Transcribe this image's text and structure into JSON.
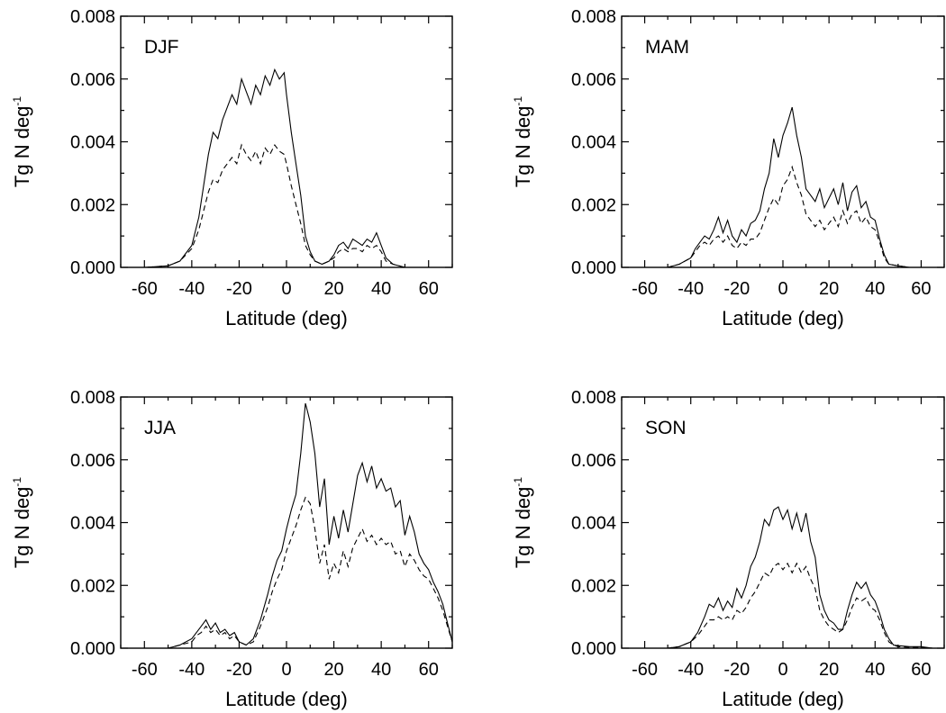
{
  "chart_data": [
    {
      "type": "line",
      "title": "DJF",
      "xlabel": "Latitude (deg)",
      "ylabel": "Tg N deg",
      "ylabel_sup": "-1",
      "xlim": [
        -70,
        70
      ],
      "ylim": [
        0.0,
        0.008
      ],
      "xticks": [
        -60,
        -40,
        -20,
        0,
        20,
        40,
        60
      ],
      "yticks": [
        "0.000",
        "0.002",
        "0.004",
        "0.006",
        "0.008"
      ],
      "series": [
        {
          "style": "solid",
          "x": [
            -70,
            -60,
            -50,
            -45,
            -40,
            -37,
            -35,
            -33,
            -31,
            -29,
            -27,
            -25,
            -23,
            -21,
            -19,
            -17,
            -15,
            -13,
            -11,
            -9,
            -7,
            -5,
            -3,
            -1,
            0,
            2,
            4,
            6,
            8,
            10,
            12,
            15,
            18,
            20,
            22,
            24,
            26,
            28,
            30,
            32,
            34,
            36,
            38,
            40,
            42,
            45,
            50
          ],
          "y": [
            0,
            0,
            5e-05,
            0.0002,
            0.0007,
            0.0016,
            0.0026,
            0.0036,
            0.0043,
            0.0041,
            0.0047,
            0.0051,
            0.0055,
            0.0052,
            0.006,
            0.0056,
            0.0052,
            0.0058,
            0.0055,
            0.0061,
            0.0058,
            0.0063,
            0.006,
            0.0062,
            0.0055,
            0.0043,
            0.0033,
            0.0023,
            0.001,
            0.0005,
            0.0002,
            0.0001,
            0.0002,
            0.0004,
            0.0007,
            0.0008,
            0.0006,
            0.0009,
            0.0008,
            0.0007,
            0.0009,
            0.0008,
            0.0011,
            0.0007,
            0.0003,
            0.0001,
            0
          ]
        },
        {
          "style": "dashed",
          "x": [
            -70,
            -60,
            -50,
            -45,
            -40,
            -37,
            -35,
            -33,
            -31,
            -29,
            -27,
            -25,
            -23,
            -21,
            -19,
            -17,
            -15,
            -13,
            -11,
            -9,
            -7,
            -5,
            -3,
            -1,
            0,
            2,
            4,
            6,
            8,
            10,
            12,
            15,
            18,
            20,
            22,
            24,
            26,
            28,
            30,
            32,
            34,
            36,
            38,
            40,
            42,
            45,
            50
          ],
          "y": [
            0,
            0,
            5e-05,
            0.0002,
            0.0006,
            0.0012,
            0.0018,
            0.0024,
            0.0028,
            0.0027,
            0.0031,
            0.0033,
            0.0035,
            0.0033,
            0.0039,
            0.0036,
            0.0034,
            0.0037,
            0.0033,
            0.0038,
            0.0036,
            0.0039,
            0.0037,
            0.0036,
            0.0033,
            0.0026,
            0.002,
            0.0014,
            0.0007,
            0.0004,
            0.0002,
            0.0001,
            0.0002,
            0.0003,
            0.0005,
            0.0006,
            0.0005,
            0.0006,
            0.0006,
            0.0005,
            0.0007,
            0.0006,
            0.0007,
            0.0005,
            0.0002,
            0.0001,
            0
          ]
        }
      ]
    },
    {
      "type": "line",
      "title": "MAM",
      "xlabel": "Latitude (deg)",
      "ylabel": "Tg N deg",
      "ylabel_sup": "-1",
      "xlim": [
        -70,
        70
      ],
      "ylim": [
        0.0,
        0.008
      ],
      "xticks": [
        -60,
        -40,
        -20,
        0,
        20,
        40,
        60
      ],
      "yticks": [
        "0.000",
        "0.002",
        "0.004",
        "0.006",
        "0.008"
      ],
      "series": [
        {
          "style": "solid",
          "x": [
            -70,
            -60,
            -50,
            -45,
            -40,
            -38,
            -36,
            -34,
            -32,
            -30,
            -28,
            -26,
            -24,
            -22,
            -20,
            -18,
            -16,
            -14,
            -12,
            -10,
            -8,
            -6,
            -4,
            -2,
            0,
            2,
            4,
            6,
            8,
            10,
            12,
            14,
            16,
            18,
            20,
            22,
            24,
            26,
            28,
            30,
            32,
            34,
            36,
            38,
            40,
            42,
            44,
            46,
            50,
            55,
            60,
            70
          ],
          "y": [
            0,
            0,
            0,
            0.0001,
            0.0003,
            0.0006,
            0.0008,
            0.001,
            0.0009,
            0.0012,
            0.0016,
            0.0011,
            0.0015,
            0.001,
            0.0008,
            0.0012,
            0.001,
            0.0014,
            0.0015,
            0.0018,
            0.0025,
            0.003,
            0.0041,
            0.0035,
            0.0042,
            0.0046,
            0.0051,
            0.0042,
            0.0035,
            0.0025,
            0.0023,
            0.0021,
            0.0025,
            0.0019,
            0.0022,
            0.0025,
            0.002,
            0.0027,
            0.0018,
            0.0024,
            0.0026,
            0.0019,
            0.0021,
            0.0016,
            0.0015,
            0.0009,
            0.0004,
            0.0001,
            5e-05,
            0,
            0,
            0
          ]
        },
        {
          "style": "dashed",
          "x": [
            -70,
            -60,
            -50,
            -45,
            -40,
            -38,
            -36,
            -34,
            -32,
            -30,
            -28,
            -26,
            -24,
            -22,
            -20,
            -18,
            -16,
            -14,
            -12,
            -10,
            -8,
            -6,
            -4,
            -2,
            0,
            2,
            4,
            6,
            8,
            10,
            12,
            14,
            16,
            18,
            20,
            22,
            24,
            26,
            28,
            30,
            32,
            34,
            36,
            38,
            40,
            42,
            44,
            46,
            50,
            55,
            60,
            70
          ],
          "y": [
            0,
            0,
            0,
            0.0001,
            0.0003,
            0.0005,
            0.0007,
            0.0008,
            0.0007,
            0.0009,
            0.001,
            0.0008,
            0.001,
            0.0007,
            0.0006,
            0.0008,
            0.0007,
            0.0009,
            0.0009,
            0.0011,
            0.0015,
            0.0019,
            0.0022,
            0.002,
            0.0026,
            0.0028,
            0.0032,
            0.0027,
            0.0023,
            0.0017,
            0.0015,
            0.0013,
            0.0015,
            0.0012,
            0.0014,
            0.0016,
            0.0013,
            0.0018,
            0.0014,
            0.0017,
            0.0018,
            0.0014,
            0.0016,
            0.0013,
            0.0012,
            0.0008,
            0.0003,
            0.0001,
            5e-05,
            0,
            0,
            0
          ]
        }
      ]
    },
    {
      "type": "line",
      "title": "JJA",
      "xlabel": "Latitude (deg)",
      "ylabel": "Tg N deg",
      "ylabel_sup": "-1",
      "xlim": [
        -70,
        70
      ],
      "ylim": [
        0.0,
        0.008
      ],
      "xticks": [
        -60,
        -40,
        -20,
        0,
        20,
        40,
        60
      ],
      "yticks": [
        "0.000",
        "0.002",
        "0.004",
        "0.006",
        "0.008"
      ],
      "series": [
        {
          "style": "solid",
          "x": [
            -70,
            -60,
            -50,
            -45,
            -40,
            -38,
            -36,
            -34,
            -32,
            -30,
            -28,
            -26,
            -24,
            -22,
            -20,
            -17,
            -14,
            -11,
            -8,
            -6,
            -4,
            -2,
            0,
            2,
            4,
            6,
            8,
            9,
            10,
            12,
            14,
            16,
            18,
            20,
            22,
            24,
            26,
            28,
            30,
            32,
            34,
            36,
            38,
            40,
            42,
            44,
            46,
            48,
            50,
            52,
            54,
            56,
            58,
            60,
            62,
            64,
            66,
            68,
            70
          ],
          "y": [
            0,
            0,
            0,
            0.0001,
            0.0003,
            0.0005,
            0.0007,
            0.0009,
            0.0006,
            0.0008,
            0.0005,
            0.0006,
            0.0004,
            0.0005,
            0.0002,
            0.0001,
            0.0003,
            0.0009,
            0.0017,
            0.0023,
            0.0028,
            0.0031,
            0.0038,
            0.0044,
            0.0049,
            0.0062,
            0.0078,
            0.0075,
            0.0072,
            0.0062,
            0.0045,
            0.0054,
            0.0033,
            0.0042,
            0.0035,
            0.0044,
            0.0037,
            0.0046,
            0.0055,
            0.0059,
            0.0053,
            0.0058,
            0.0051,
            0.0054,
            0.005,
            0.0051,
            0.0045,
            0.0047,
            0.0036,
            0.0042,
            0.0037,
            0.003,
            0.0027,
            0.0025,
            0.0021,
            0.0018,
            0.0014,
            0.0008,
            0.0002
          ]
        },
        {
          "style": "dashed",
          "x": [
            -70,
            -60,
            -50,
            -45,
            -40,
            -38,
            -36,
            -34,
            -32,
            -30,
            -28,
            -26,
            -24,
            -22,
            -20,
            -17,
            -14,
            -11,
            -8,
            -6,
            -4,
            -2,
            0,
            2,
            4,
            6,
            8,
            9,
            10,
            12,
            14,
            16,
            18,
            20,
            22,
            24,
            26,
            28,
            30,
            32,
            34,
            36,
            38,
            40,
            42,
            44,
            46,
            48,
            50,
            52,
            54,
            56,
            58,
            60,
            62,
            64,
            66,
            68,
            70
          ],
          "y": [
            0,
            0,
            0,
            0.0001,
            0.0002,
            0.0004,
            0.0005,
            0.0007,
            0.0005,
            0.0006,
            0.0004,
            0.0005,
            0.0003,
            0.0004,
            0.0002,
            0.0001,
            0.0002,
            0.0007,
            0.0013,
            0.0018,
            0.0022,
            0.0025,
            0.0031,
            0.0035,
            0.0039,
            0.0044,
            0.0048,
            0.0047,
            0.0046,
            0.0038,
            0.0027,
            0.0033,
            0.0022,
            0.0027,
            0.0024,
            0.0031,
            0.0026,
            0.0032,
            0.0035,
            0.0038,
            0.0034,
            0.0036,
            0.0033,
            0.0035,
            0.0033,
            0.0034,
            0.003,
            0.0031,
            0.0026,
            0.003,
            0.0028,
            0.0025,
            0.0023,
            0.0022,
            0.0019,
            0.0016,
            0.0012,
            0.0007,
            0.0002
          ]
        }
      ]
    },
    {
      "type": "line",
      "title": "SON",
      "xlabel": "Latitude (deg)",
      "ylabel": "Tg N deg",
      "ylabel_sup": "-1",
      "xlim": [
        -70,
        70
      ],
      "ylim": [
        0.0,
        0.008
      ],
      "xticks": [
        -60,
        -40,
        -20,
        0,
        20,
        40,
        60
      ],
      "yticks": [
        "0.000",
        "0.002",
        "0.004",
        "0.006",
        "0.008"
      ],
      "series": [
        {
          "style": "solid",
          "x": [
            -70,
            -60,
            -50,
            -45,
            -40,
            -37,
            -34,
            -32,
            -30,
            -28,
            -26,
            -24,
            -22,
            -20,
            -18,
            -16,
            -14,
            -12,
            -10,
            -8,
            -6,
            -4,
            -2,
            0,
            2,
            4,
            6,
            8,
            10,
            12,
            14,
            16,
            18,
            20,
            22,
            24,
            26,
            28,
            30,
            32,
            34,
            36,
            38,
            40,
            42,
            44,
            46,
            48,
            50,
            55,
            60,
            65,
            70
          ],
          "y": [
            0,
            0,
            0,
            5e-05,
            0.0002,
            0.0005,
            0.001,
            0.0014,
            0.0013,
            0.0016,
            0.0012,
            0.0015,
            0.0013,
            0.0019,
            0.0016,
            0.002,
            0.0026,
            0.0029,
            0.0034,
            0.0041,
            0.0039,
            0.0044,
            0.0045,
            0.0041,
            0.0044,
            0.0038,
            0.0043,
            0.0037,
            0.0043,
            0.0034,
            0.0029,
            0.0017,
            0.0012,
            0.0009,
            0.0008,
            0.0006,
            0.0006,
            0.0012,
            0.0017,
            0.0021,
            0.0019,
            0.0021,
            0.0017,
            0.0015,
            0.0011,
            0.0006,
            0.0003,
            0.0001,
            8e-05,
            5e-05,
            5e-05,
            0,
            0
          ]
        },
        {
          "style": "dashed",
          "x": [
            -70,
            -60,
            -50,
            -45,
            -40,
            -37,
            -34,
            -32,
            -30,
            -28,
            -26,
            -24,
            -22,
            -20,
            -18,
            -16,
            -14,
            -12,
            -10,
            -8,
            -6,
            -4,
            -2,
            0,
            2,
            4,
            6,
            8,
            10,
            12,
            14,
            16,
            18,
            20,
            22,
            24,
            26,
            28,
            30,
            32,
            34,
            36,
            38,
            40,
            42,
            44,
            46,
            48,
            50,
            55,
            60,
            65,
            70
          ],
          "y": [
            0,
            0,
            0,
            5e-05,
            0.0002,
            0.0004,
            0.0007,
            0.0009,
            0.0009,
            0.001,
            0.0009,
            0.001,
            0.0009,
            0.0012,
            0.0011,
            0.0013,
            0.0016,
            0.0018,
            0.0021,
            0.0024,
            0.0023,
            0.0026,
            0.0027,
            0.0025,
            0.0027,
            0.0024,
            0.0027,
            0.0024,
            0.0026,
            0.0022,
            0.0019,
            0.0012,
            0.0009,
            0.0007,
            0.0006,
            0.0005,
            0.0006,
            0.0009,
            0.0013,
            0.0016,
            0.0015,
            0.0016,
            0.0013,
            0.0012,
            0.0009,
            0.0005,
            0.0002,
            0.0001,
            5e-05,
            3e-05,
            3e-05,
            0,
            0
          ]
        }
      ]
    }
  ]
}
